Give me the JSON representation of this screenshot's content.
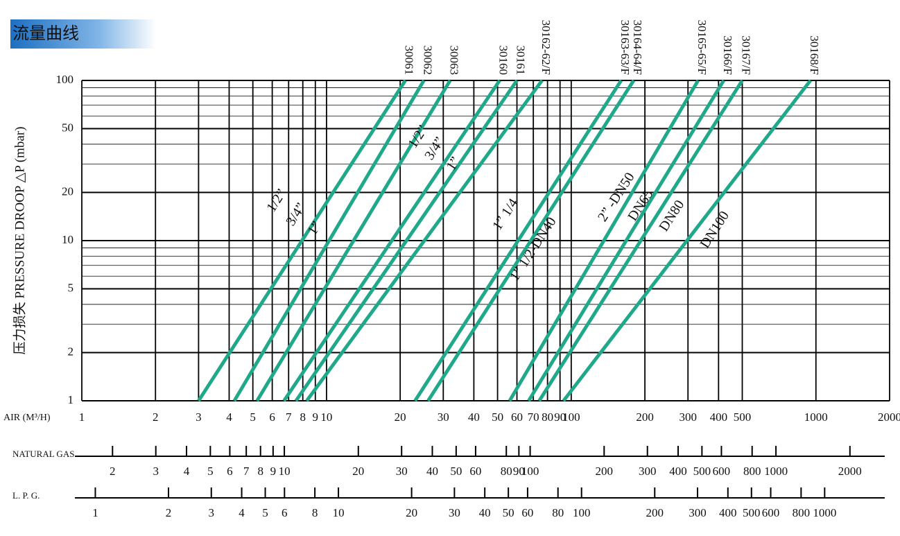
{
  "chart_data": {
    "type": "line",
    "title": "流量曲线",
    "y_label": "压力损失 PRESSURE DROOP △P (mbar)",
    "x_label": "AIR (M³/H)",
    "log_x": true,
    "log_y": true,
    "grid": true,
    "xlim": [
      1,
      2000
    ],
    "xticks": [
      1,
      2,
      3,
      4,
      5,
      6,
      7,
      8,
      9,
      10,
      20,
      30,
      40,
      50,
      60,
      70,
      80,
      90,
      100,
      200,
      300,
      400,
      500,
      1000,
      2000
    ],
    "ylim": [
      1,
      100
    ],
    "yticks": [
      1,
      2,
      5,
      10,
      20,
      50,
      100
    ],
    "yminor": [
      3,
      4,
      6,
      7,
      8,
      9,
      30,
      40,
      60,
      70,
      80,
      90
    ],
    "series": [
      {
        "name": "30061",
        "color": "#1fa889",
        "x": [
          3,
          21
        ],
        "values": [
          1,
          100
        ]
      },
      {
        "name": "30062",
        "color": "#1fa889",
        "x": [
          4.2,
          25
        ],
        "values": [
          1,
          100
        ]
      },
      {
        "name": "30063",
        "color": "#1fa889",
        "x": [
          5.2,
          32
        ],
        "values": [
          1,
          100
        ]
      },
      {
        "name": "30160",
        "color": "#1fa889",
        "x": [
          6.7,
          51
        ],
        "values": [
          1,
          100
        ]
      },
      {
        "name": "30161",
        "color": "#1fa889",
        "x": [
          7.5,
          60
        ],
        "values": [
          1,
          100
        ]
      },
      {
        "name": "30162-62/F",
        "color": "#1fa889",
        "x": [
          8.3,
          76
        ],
        "values": [
          1,
          100
        ]
      },
      {
        "name": "30163-63/F",
        "color": "#1fa889",
        "x": [
          23,
          160
        ],
        "values": [
          1,
          100
        ]
      },
      {
        "name": "30164-64/F",
        "color": "#1fa889",
        "x": [
          26,
          180
        ],
        "values": [
          1,
          100
        ]
      },
      {
        "name": "30165-65/F",
        "color": "#1fa889",
        "x": [
          56,
          330
        ],
        "values": [
          1,
          100
        ]
      },
      {
        "name": "30166/F",
        "color": "#1fa889",
        "x": [
          67,
          420
        ],
        "values": [
          1,
          100
        ]
      },
      {
        "name": "30167/F",
        "color": "#1fa889",
        "x": [
          74,
          500
        ],
        "values": [
          1,
          100
        ]
      },
      {
        "name": "30168/F",
        "color": "#1fa889",
        "x": [
          93,
          950
        ],
        "values": [
          1,
          100
        ]
      }
    ],
    "annotations": [
      "1/2”",
      "3/4”",
      "1”",
      "1/2”",
      "3/4”",
      "1”",
      "1” 1/4",
      "1” 1/2-DN40",
      "2” -DN50",
      "DN65",
      "DN80",
      "DN100"
    ],
    "secondary_axes": [
      {
        "label": "NATURAL GAS",
        "xlim": [
          1.5,
          2900
        ],
        "xticks": [
          2,
          3,
          4,
          5,
          6,
          7,
          8,
          9,
          10,
          20,
          30,
          40,
          50,
          60,
          80,
          90,
          100,
          200,
          300,
          400,
          500,
          600,
          800,
          1000,
          2000
        ]
      },
      {
        "label": "L. P. G.",
        "xlim": [
          0.88,
          1850
        ],
        "xticks": [
          1,
          2,
          3,
          4,
          5,
          6,
          8,
          10,
          20,
          30,
          40,
          50,
          60,
          80,
          100,
          200,
          300,
          400,
          500,
          600,
          800,
          1000
        ]
      }
    ]
  }
}
